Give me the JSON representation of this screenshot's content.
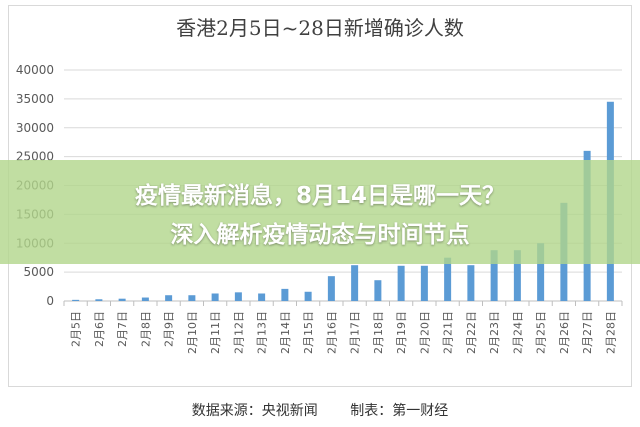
{
  "chart_data": {
    "type": "bar",
    "title": "香港2月5日~28日新增确诊人数",
    "categories": [
      "2月5日",
      "2月6日",
      "2月7日",
      "2月8日",
      "2月9日",
      "2月10日",
      "2月11日",
      "2月12日",
      "2月13日",
      "2月14日",
      "2月15日",
      "2月16日",
      "2月17日",
      "2月18日",
      "2月19日",
      "2月20日",
      "2月21日",
      "2月22日",
      "2月23日",
      "2月24日",
      "2月25日",
      "2月26日",
      "2月27日",
      "2月28日"
    ],
    "values": [
      200,
      300,
      400,
      600,
      1000,
      1000,
      1300,
      1500,
      1300,
      2100,
      1600,
      4300,
      6200,
      3600,
      6100,
      6100,
      7500,
      6200,
      8800,
      8800,
      10000,
      17000,
      26000,
      34500
    ],
    "ylim": [
      0,
      40000
    ],
    "yticks": [
      0,
      5000,
      10000,
      15000,
      20000,
      25000,
      30000,
      35000,
      40000
    ],
    "grid": true,
    "bar_color": "#5b9bd5"
  },
  "overlay": {
    "line1": "疫情最新消息，8月14日是哪一天？",
    "line2": "深入解析疫情动态与时间节点"
  },
  "footer": {
    "source": "数据来源：央视新闻",
    "maker": "制表：第一财经"
  }
}
